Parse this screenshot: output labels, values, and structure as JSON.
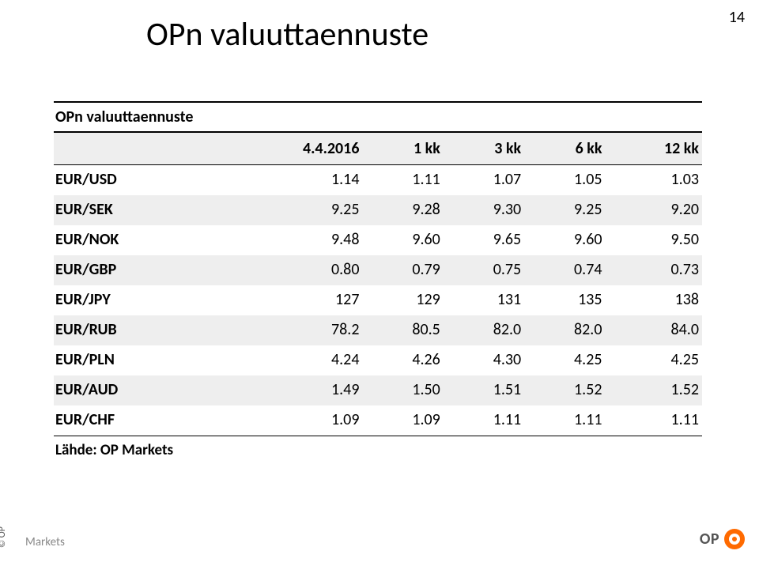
{
  "page_number": "14",
  "main_title": "OPn valuuttaennuste",
  "table": {
    "section_title": "OPn valuuttaennuste",
    "columns": [
      "",
      "4.4.2016",
      "1 kk",
      "3 kk",
      "6 kk",
      "12 kk"
    ],
    "rows": [
      {
        "label": "EUR/USD",
        "vals": [
          "1.14",
          "1.11",
          "1.07",
          "1.05",
          "1.03"
        ]
      },
      {
        "label": "EUR/SEK",
        "vals": [
          "9.25",
          "9.28",
          "9.30",
          "9.25",
          "9.20"
        ]
      },
      {
        "label": "EUR/NOK",
        "vals": [
          "9.48",
          "9.60",
          "9.65",
          "9.60",
          "9.50"
        ]
      },
      {
        "label": "EUR/GBP",
        "vals": [
          "0.80",
          "0.79",
          "0.75",
          "0.74",
          "0.73"
        ]
      },
      {
        "label": "EUR/JPY",
        "vals": [
          "127",
          "129",
          "131",
          "135",
          "138"
        ]
      },
      {
        "label": "EUR/RUB",
        "vals": [
          "78.2",
          "80.5",
          "82.0",
          "82.0",
          "84.0"
        ]
      },
      {
        "label": "EUR/PLN",
        "vals": [
          "4.24",
          "4.26",
          "4.30",
          "4.25",
          "4.25"
        ]
      },
      {
        "label": "EUR/AUD",
        "vals": [
          "1.49",
          "1.50",
          "1.51",
          "1.52",
          "1.52"
        ]
      },
      {
        "label": "EUR/CHF",
        "vals": [
          "1.09",
          "1.09",
          "1.11",
          "1.11",
          "1.11"
        ]
      }
    ],
    "source": "Lähde: OP Markets"
  },
  "footer": {
    "copyright": "© OP",
    "markets": "Markets",
    "brand": "OP"
  },
  "style": {
    "row_shade_bg": "#eeeeee",
    "border_color": "#000000",
    "text_color": "#000000",
    "footer_text_color": "#888888",
    "logo_bg": "#ff6a00",
    "title_fontsize": 42,
    "table_fontsize": 20,
    "pagenum_fontsize": 20
  }
}
